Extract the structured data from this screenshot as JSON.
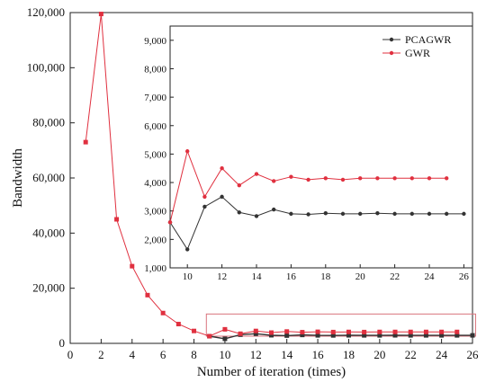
{
  "chart_data": [
    {
      "type": "line",
      "xlabel": "Number of iteration (times)",
      "ylabel": "Bandwidth",
      "xlim": [
        0,
        26
      ],
      "ylim": [
        0,
        120000
      ],
      "xticks": [
        "0",
        "2",
        "4",
        "6",
        "8",
        "10",
        "12",
        "14",
        "16",
        "18",
        "20",
        "22",
        "24",
        "26"
      ],
      "yticks": [
        "0",
        "20,000",
        "40,000",
        "60,000",
        "80,000",
        "100,000",
        "120,000"
      ],
      "grid": false,
      "series": [
        {
          "name": "GWR",
          "color": "#e0303f",
          "marker": "square",
          "x": [
            1,
            2,
            3,
            4,
            5,
            6,
            7,
            8,
            9,
            10,
            11,
            12,
            13,
            14,
            15,
            16,
            17,
            18,
            19,
            20,
            21,
            22,
            23,
            24,
            25
          ],
          "y": [
            73000,
            119500,
            45000,
            28000,
            17500,
            11000,
            7000,
            4500,
            2600,
            5100,
            3500,
            4500,
            3900,
            4300,
            4050,
            4200,
            4100,
            4150,
            4100,
            4150,
            4150,
            4150,
            4150,
            4150,
            4150
          ]
        },
        {
          "name": "PCAGWR",
          "color": "#333333",
          "marker": "square",
          "x": [
            9,
            10,
            11,
            12,
            13,
            14,
            15,
            16,
            17,
            18,
            19,
            20,
            21,
            22,
            23,
            24,
            25,
            26
          ],
          "y": [
            2600,
            1650,
            3150,
            3500,
            2950,
            2820,
            3050,
            2900,
            2880,
            2920,
            2900,
            2900,
            2920,
            2900,
            2900,
            2900,
            2900,
            2900
          ]
        }
      ],
      "highlight_box": {
        "x": [
          8.8,
          26.2
        ],
        "y": [
          0,
          10000
        ],
        "color": "#d9737d"
      }
    },
    {
      "type": "line",
      "xlim": [
        9,
        26.5
      ],
      "ylim": [
        1000,
        9500
      ],
      "xticks": [
        "10",
        "12",
        "14",
        "16",
        "18",
        "20",
        "22",
        "24",
        "26"
      ],
      "yticks": [
        "1,000",
        "2,000",
        "3,000",
        "4,000",
        "5,000",
        "6,000",
        "7,000",
        "8,000",
        "9,000"
      ],
      "legend": {
        "position": "top-right",
        "entries": [
          "PCAGWR",
          "GWR"
        ]
      },
      "grid": false,
      "series": [
        {
          "name": "PCAGWR",
          "color": "#333333",
          "marker": "circle",
          "x": [
            9,
            10,
            11,
            12,
            13,
            14,
            15,
            16,
            17,
            18,
            19,
            20,
            21,
            22,
            23,
            24,
            25,
            26
          ],
          "y": [
            2600,
            1650,
            3150,
            3500,
            2950,
            2820,
            3050,
            2900,
            2880,
            2920,
            2900,
            2900,
            2920,
            2900,
            2900,
            2900,
            2900,
            2900
          ]
        },
        {
          "name": "GWR",
          "color": "#e0303f",
          "marker": "circle",
          "x": [
            9,
            10,
            11,
            12,
            13,
            14,
            15,
            16,
            17,
            18,
            19,
            20,
            21,
            22,
            23,
            24,
            25
          ],
          "y": [
            2600,
            5100,
            3500,
            4500,
            3900,
            4300,
            4050,
            4200,
            4100,
            4150,
            4100,
            4150,
            4150,
            4150,
            4150,
            4150,
            4150
          ]
        }
      ]
    }
  ]
}
